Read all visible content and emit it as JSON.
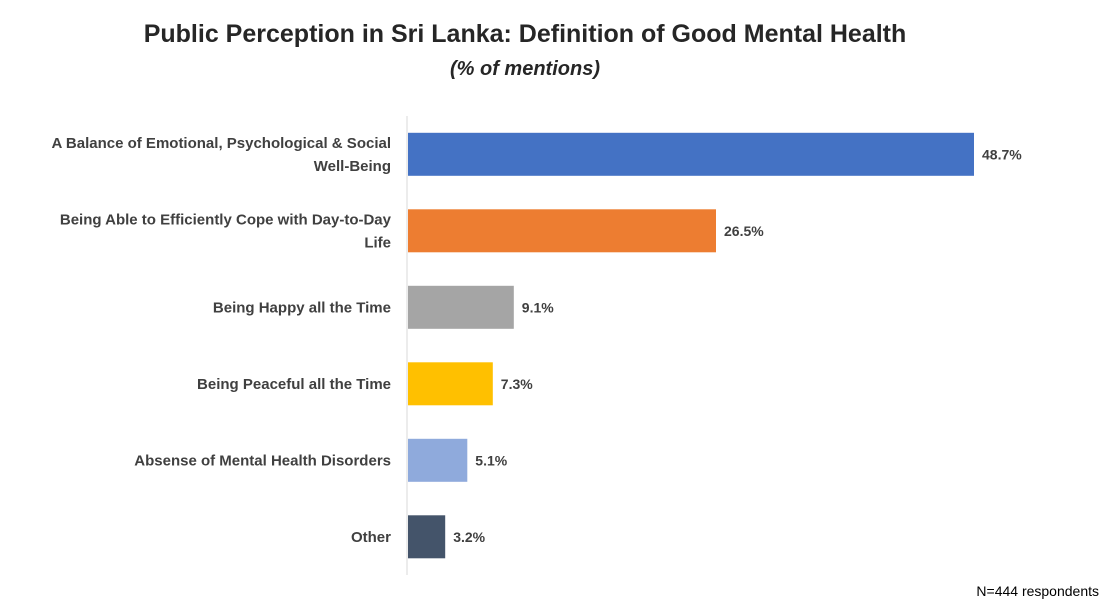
{
  "chart_data": {
    "type": "bar",
    "orientation": "horizontal",
    "title": "Public Perception in Sri Lanka: Definition of Good Mental Health",
    "subtitle": "(% of mentions)",
    "categories": [
      [
        "A Balance of Emotional, Psychological & Social",
        "Well-Being"
      ],
      [
        "Being Able to Efficiently Cope with Day-to-Day",
        "Life"
      ],
      [
        "Being Happy all the Time"
      ],
      [
        "Being Peaceful all the Time"
      ],
      [
        "Absense of Mental Health Disorders"
      ],
      [
        "Other"
      ]
    ],
    "values": [
      48.7,
      26.5,
      9.1,
      7.3,
      5.1,
      3.2
    ],
    "value_labels": [
      "48.7%",
      "26.5%",
      "9.1%",
      "7.3%",
      "5.1%",
      "3.2%"
    ],
    "colors": [
      "#4472C4",
      "#ED7D31",
      "#A5A5A5",
      "#FFC000",
      "#8FAADC",
      "#44546A"
    ],
    "xlim": [
      0,
      50
    ],
    "grid": false,
    "legend": "none"
  },
  "footnote": "N=444 respondents"
}
